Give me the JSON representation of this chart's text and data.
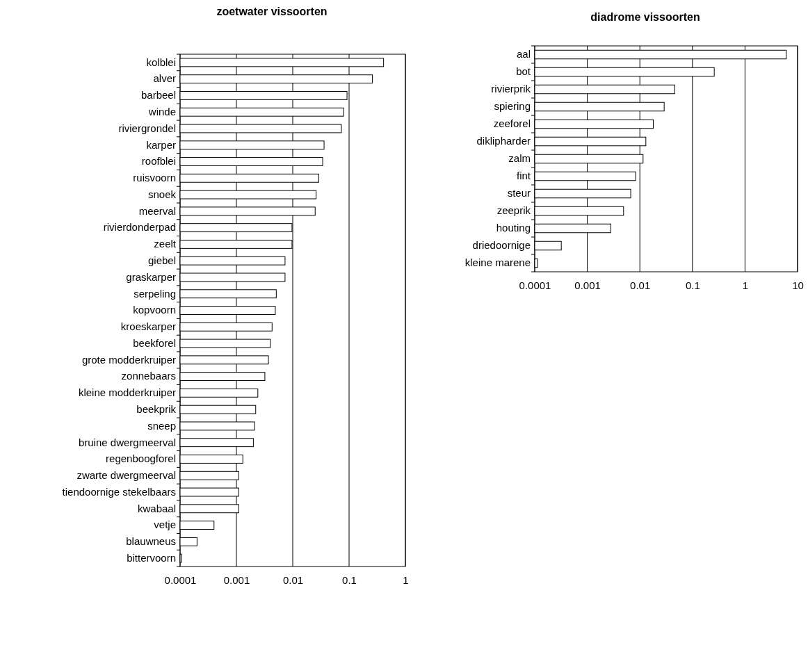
{
  "chart_data": [
    {
      "type": "bar",
      "orientation": "horizontal",
      "log": "x",
      "title": "zoetwater vissoorten",
      "grid": "x",
      "categories": [
        "kolblei",
        "alver",
        "barbeel",
        "winde",
        "riviergrondel",
        "karper",
        "roofblei",
        "ruisvoorn",
        "snoek",
        "meerval",
        "rivierdonderpad",
        "zeelt",
        "giebel",
        "graskarper",
        "serpeling",
        "kopvoorn",
        "kroeskarper",
        "beekforel",
        "grote modderkruiper",
        "zonnebaars",
        "kleine modderkruiper",
        "beekprik",
        "sneep",
        "bruine dwergmeerval",
        "regenboogforel",
        "zwarte dwergmeerval",
        "tiendoornige stekelbaars",
        "kwabaal",
        "vetje",
        "blauwneus",
        "bittervoorn"
      ],
      "series": [
        {
          "color": "#ffffff",
          "values": [
            0.41,
            0.26,
            0.092,
            0.08,
            0.073,
            0.036,
            0.034,
            0.029,
            0.026,
            0.025,
            0.0097,
            0.0097,
            0.0073,
            0.0073,
            0.0051,
            0.0049,
            0.0043,
            0.004,
            0.0037,
            0.0032,
            0.0024,
            0.0022,
            0.0021,
            0.002,
            0.0013,
            0.0011,
            0.0011,
            0.0011,
            0.0004,
            0.0002,
            0.000106
          ]
        }
      ],
      "xlim": [
        0.0001,
        1
      ],
      "xticks": [
        0.0001,
        0.001,
        0.01,
        0.1,
        1
      ]
    },
    {
      "type": "bar",
      "orientation": "horizontal",
      "log": "x",
      "title": "diadrome vissoorten",
      "grid": "x",
      "categories": [
        "aal",
        "bot",
        "rivierprik",
        "spiering",
        "zeeforel",
        "diklipharder",
        "zalm",
        "fint",
        "steur",
        "zeeprik",
        "houting",
        "driedoornige",
        "kleine marene"
      ],
      "series": [
        {
          "color": "#ffffff",
          "values": [
            6.1,
            0.26,
            0.046,
            0.029,
            0.018,
            0.013,
            0.0115,
            0.0083,
            0.0067,
            0.0049,
            0.0028,
            0.00032,
            0.000113
          ]
        }
      ],
      "xlim": [
        0.0001,
        10
      ],
      "xticks": [
        0.0001,
        0.001,
        0.01,
        0.1,
        1,
        10
      ]
    }
  ]
}
